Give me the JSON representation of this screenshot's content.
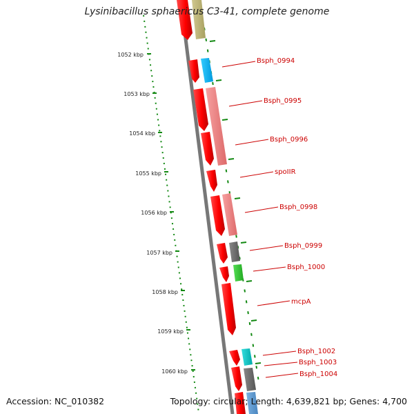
{
  "header": {
    "title": "Lysinibacillus sphaericus C3-41, complete genome"
  },
  "footer": {
    "accession": "Accession: NC_010382",
    "summary": "Topology: circular; Length: 4,639,821 bp; Genes: 4,700"
  },
  "ruler": {
    "labels": [
      "1052 kbp",
      "1053 kbp",
      "1054 kbp",
      "1055 kbp",
      "1056 kbp",
      "1057 kbp",
      "1058 kbp",
      "1059 kbp",
      "1060 kbp"
    ]
  },
  "genes": [
    {
      "label": "Bsph_0994",
      "forward": true,
      "feature_color": "#00bbee"
    },
    {
      "label": "Bsph_0995",
      "forward": true,
      "feature_color": "#f08080"
    },
    {
      "label": "Bsph_0996",
      "forward": true,
      "feature_color": "#f08080"
    },
    {
      "label": "spoIIR",
      "forward": true,
      "feature_color": ""
    },
    {
      "label": "Bsph_0998",
      "forward": true,
      "feature_color": "#f08080"
    },
    {
      "label": "Bsph_0999",
      "forward": true,
      "feature_color": "#666666"
    },
    {
      "label": "Bsph_1000",
      "forward": true,
      "feature_color": "#33cc33"
    },
    {
      "label": "mcpA",
      "forward": true,
      "feature_color": ""
    },
    {
      "label": "Bsph_1002",
      "forward": true,
      "feature_color": "#00cccc"
    },
    {
      "label": "Bsph_1003",
      "forward": true,
      "feature_color": ""
    },
    {
      "label": "Bsph_1004",
      "forward": true,
      "feature_color": "#666666"
    }
  ],
  "colors": {
    "gene": "#ff0000",
    "backbone": "#777777",
    "ruler": "#118811",
    "label": "#cc0000"
  }
}
